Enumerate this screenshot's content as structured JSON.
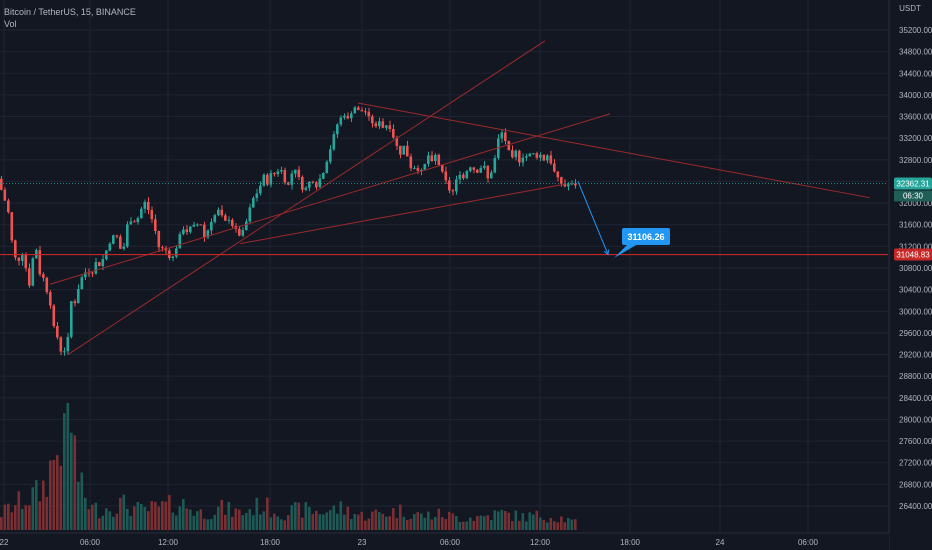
{
  "header": {
    "symbol": "Bitcoin / TetherUS, 15, BINANCE",
    "indicator": "Vol"
  },
  "price_axis": {
    "currency": "USDT",
    "current_price": "32362.31",
    "countdown": "06:30",
    "level_label": "31048.83"
  },
  "annotation": {
    "target_label": "31106.26"
  },
  "colors": {
    "background": "#131722",
    "up": "#26a69a",
    "down": "#ef5350",
    "trendline": "#9c2a2a",
    "level": "#c62828",
    "arrow": "#2196f3",
    "text": "#b2b5be"
  },
  "chart_data": {
    "type": "candlestick",
    "symbol": "Bitcoin / TetherUS",
    "interval": "15",
    "exchange": "BINANCE",
    "y_ticks": [
      35200,
      34800,
      34400,
      34000,
      33600,
      33200,
      32800,
      32400,
      32000,
      31600,
      31200,
      30800,
      30400,
      30000,
      29600,
      29200,
      28800,
      28400,
      28000,
      27600,
      27200,
      26800,
      26400
    ],
    "x_ticks": [
      "22",
      "06:00",
      "12:00",
      "18:00",
      "23",
      "06:00",
      "12:00",
      "18:00",
      "24",
      "06:00"
    ],
    "current_price": 32362.31,
    "horizontal_level": 31048.83,
    "target_price": 31106.26,
    "ohlc_anchor_points": [
      [
        0,
        32450
      ],
      [
        6,
        32100
      ],
      [
        10,
        31900
      ],
      [
        14,
        31300
      ],
      [
        17,
        31000
      ],
      [
        20,
        30900
      ],
      [
        24,
        31100
      ],
      [
        28,
        30800
      ],
      [
        32,
        30450
      ],
      [
        34,
        30900
      ],
      [
        38,
        31200
      ],
      [
        42,
        30700
      ],
      [
        46,
        30600
      ],
      [
        50,
        30300
      ],
      [
        53,
        30100
      ],
      [
        56,
        29700
      ],
      [
        59,
        29550
      ],
      [
        62,
        29380
      ],
      [
        65,
        29050
      ],
      [
        68,
        29500
      ],
      [
        70,
        29500
      ],
      [
        73,
        30200
      ],
      [
        76,
        30100
      ],
      [
        79,
        30300
      ],
      [
        82,
        30550
      ],
      [
        86,
        30700
      ],
      [
        90,
        30750
      ],
      [
        94,
        30700
      ],
      [
        98,
        30900
      ],
      [
        102,
        30850
      ],
      [
        106,
        31000
      ],
      [
        110,
        31200
      ],
      [
        114,
        31350
      ],
      [
        118,
        31450
      ],
      [
        122,
        31150
      ],
      [
        126,
        31200
      ],
      [
        130,
        31650
      ],
      [
        134,
        31700
      ],
      [
        138,
        31650
      ],
      [
        142,
        31800
      ],
      [
        146,
        32050
      ],
      [
        150,
        31900
      ],
      [
        154,
        31700
      ],
      [
        158,
        31450
      ],
      [
        162,
        31100
      ],
      [
        166,
        31200
      ],
      [
        170,
        31050
      ],
      [
        174,
        30950
      ],
      [
        178,
        31150
      ],
      [
        182,
        31400
      ],
      [
        186,
        31550
      ],
      [
        190,
        31450
      ],
      [
        194,
        31600
      ],
      [
        198,
        31550
      ],
      [
        202,
        31700
      ],
      [
        206,
        31350
      ],
      [
        210,
        31500
      ],
      [
        214,
        31700
      ],
      [
        218,
        31800
      ],
      [
        222,
        31900
      ],
      [
        226,
        31600
      ],
      [
        230,
        31750
      ],
      [
        234,
        31600
      ],
      [
        238,
        31500
      ],
      [
        242,
        31400
      ],
      [
        246,
        31500
      ],
      [
        250,
        31750
      ],
      [
        254,
        32050
      ],
      [
        258,
        32150
      ],
      [
        262,
        32300
      ],
      [
        266,
        32500
      ],
      [
        270,
        32350
      ],
      [
        274,
        32600
      ],
      [
        278,
        32500
      ],
      [
        282,
        32700
      ],
      [
        286,
        32450
      ],
      [
        290,
        32300
      ],
      [
        294,
        32550
      ],
      [
        298,
        32650
      ],
      [
        302,
        32400
      ],
      [
        306,
        32200
      ],
      [
        310,
        32350
      ],
      [
        314,
        32450
      ],
      [
        318,
        32300
      ],
      [
        322,
        32450
      ],
      [
        326,
        32600
      ],
      [
        330,
        32850
      ],
      [
        334,
        33100
      ],
      [
        338,
        33400
      ],
      [
        342,
        33550
      ],
      [
        346,
        33650
      ],
      [
        350,
        33550
      ],
      [
        354,
        33700
      ],
      [
        358,
        33800
      ],
      [
        362,
        33650
      ],
      [
        366,
        33750
      ],
      [
        370,
        33600
      ],
      [
        374,
        33500
      ],
      [
        378,
        33400
      ],
      [
        382,
        33550
      ],
      [
        386,
        33350
      ],
      [
        390,
        33500
      ],
      [
        394,
        33300
      ],
      [
        398,
        33100
      ],
      [
        402,
        32900
      ],
      [
        406,
        33050
      ],
      [
        410,
        32850
      ],
      [
        414,
        32600
      ],
      [
        418,
        32700
      ],
      [
        422,
        32550
      ],
      [
        426,
        32650
      ],
      [
        430,
        32900
      ],
      [
        434,
        32750
      ],
      [
        438,
        32900
      ],
      [
        442,
        32650
      ],
      [
        446,
        32500
      ],
      [
        450,
        32300
      ],
      [
        454,
        32150
      ],
      [
        458,
        32400
      ],
      [
        462,
        32550
      ],
      [
        466,
        32450
      ],
      [
        470,
        32650
      ],
      [
        474,
        32700
      ],
      [
        478,
        32550
      ],
      [
        482,
        32650
      ],
      [
        486,
        32700
      ],
      [
        490,
        32450
      ],
      [
        494,
        32600
      ],
      [
        498,
        32900
      ],
      [
        502,
        33350
      ],
      [
        506,
        33250
      ],
      [
        510,
        33000
      ],
      [
        514,
        32800
      ],
      [
        518,
        32950
      ],
      [
        522,
        32750
      ],
      [
        526,
        32900
      ],
      [
        530,
        32850
      ],
      [
        534,
        32950
      ],
      [
        538,
        32850
      ],
      [
        542,
        32900
      ],
      [
        546,
        32800
      ],
      [
        550,
        32900
      ],
      [
        554,
        32700
      ],
      [
        558,
        32500
      ],
      [
        562,
        32400
      ],
      [
        566,
        32300
      ],
      [
        570,
        32350
      ],
      [
        575,
        32340
      ]
    ],
    "volume_anchor_points": [
      [
        0,
        70
      ],
      [
        20,
        120
      ],
      [
        40,
        160
      ],
      [
        56,
        330
      ],
      [
        60,
        410
      ],
      [
        64,
        320
      ],
      [
        68,
        560
      ],
      [
        72,
        370
      ],
      [
        76,
        250
      ],
      [
        80,
        170
      ],
      [
        90,
        90
      ],
      [
        100,
        85
      ],
      [
        120,
        110
      ],
      [
        140,
        80
      ],
      [
        160,
        95
      ],
      [
        180,
        110
      ],
      [
        200,
        70
      ],
      [
        220,
        90
      ],
      [
        240,
        70
      ],
      [
        260,
        105
      ],
      [
        280,
        70
      ],
      [
        300,
        85
      ],
      [
        320,
        75
      ],
      [
        340,
        90
      ],
      [
        360,
        60
      ],
      [
        380,
        70
      ],
      [
        400,
        80
      ],
      [
        420,
        60
      ],
      [
        440,
        65
      ],
      [
        460,
        50
      ],
      [
        480,
        55
      ],
      [
        500,
        70
      ],
      [
        520,
        55
      ],
      [
        540,
        60
      ],
      [
        560,
        50
      ],
      [
        575,
        30
      ]
    ],
    "drawings": [
      {
        "type": "trendline",
        "from": {
          "bar": 68,
          "price": 29200
        },
        "to": {
          "bar": 545,
          "price": 35000
        }
      },
      {
        "type": "trendline",
        "from": {
          "bar": 50,
          "price": 30500
        },
        "to": {
          "bar": 610,
          "price": 33650
        }
      },
      {
        "type": "trendline",
        "from": {
          "bar": 358,
          "price": 33850
        },
        "to": {
          "bar": 870,
          "price": 32100
        }
      },
      {
        "type": "trendline",
        "from": {
          "bar": 240,
          "price": 31250
        },
        "to": {
          "bar": 565,
          "price": 32350
        }
      },
      {
        "type": "horizontal_line",
        "price": 31048.83
      },
      {
        "type": "arrow",
        "from": {
          "bar": 578,
          "price": 32400
        },
        "to": {
          "bar": 608,
          "price": 31050
        }
      },
      {
        "type": "callout",
        "price": 31106.26
      }
    ]
  }
}
